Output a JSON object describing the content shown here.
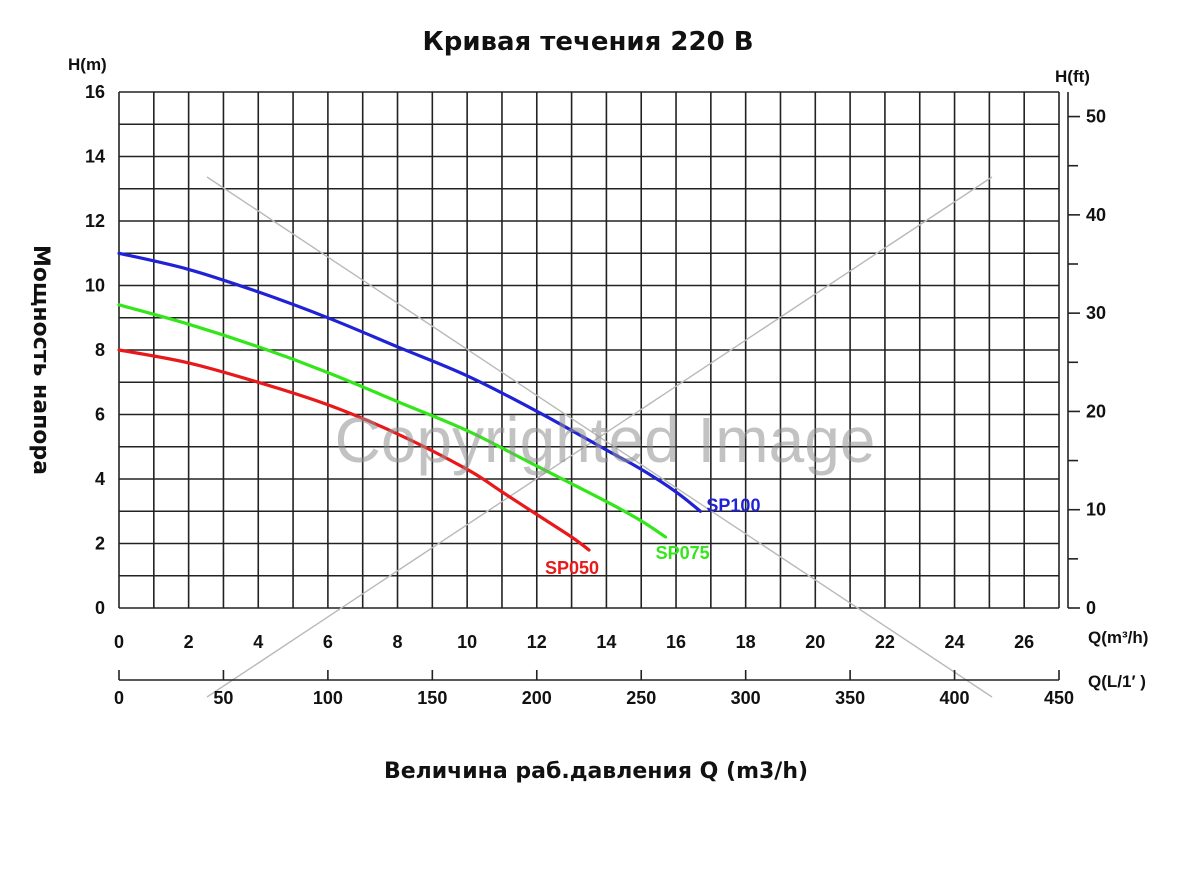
{
  "chart_data": {
    "type": "line",
    "title": "Кривая течения 220 В",
    "xlabel": "Величина раб.давления Q (m3/h)",
    "ylabel": "Мощность напора",
    "y_unit_left": "H(m)",
    "y_unit_right": "H(ft)",
    "x_unit_primary": "Q(m³/h)",
    "x_unit_secondary": "Q(L/1′ )",
    "xlim": [
      0,
      27
    ],
    "ylim": [
      0,
      16
    ],
    "x_ticks": [
      0,
      2,
      4,
      6,
      8,
      10,
      12,
      14,
      16,
      18,
      20,
      22,
      24,
      26
    ],
    "y_ticks": [
      0,
      2,
      4,
      6,
      8,
      10,
      12,
      14,
      16
    ],
    "right_axis": {
      "ticks": [
        0,
        10,
        20,
        30,
        40,
        50
      ],
      "lim": [
        0,
        52.5
      ]
    },
    "secondary_x_axis": {
      "ticks": [
        0,
        50,
        100,
        150,
        200,
        250,
        300,
        350,
        400,
        450
      ],
      "lim": [
        0,
        450
      ]
    },
    "grid": true,
    "series": [
      {
        "name": "SP050",
        "color": "#e8191a",
        "x": [
          0,
          2,
          4,
          6,
          8,
          10,
          11,
          12,
          13,
          13.5
        ],
        "y": [
          8.0,
          7.6,
          7.0,
          6.3,
          5.4,
          4.3,
          3.6,
          2.9,
          2.2,
          1.8
        ]
      },
      {
        "name": "SP075",
        "color": "#33e619",
        "x": [
          0,
          2,
          4,
          6,
          8,
          10,
          12,
          14,
          15,
          15.7
        ],
        "y": [
          9.4,
          8.8,
          8.1,
          7.3,
          6.4,
          5.5,
          4.4,
          3.3,
          2.7,
          2.2
        ]
      },
      {
        "name": "SP100",
        "color": "#2022d6",
        "x": [
          0,
          2,
          4,
          6,
          8,
          10,
          12,
          14,
          15,
          16,
          16.7
        ],
        "y": [
          11.0,
          10.5,
          9.8,
          9.0,
          8.1,
          7.2,
          6.1,
          4.9,
          4.3,
          3.6,
          3.0
        ]
      }
    ],
    "watermark": "Copyrighted Image"
  }
}
